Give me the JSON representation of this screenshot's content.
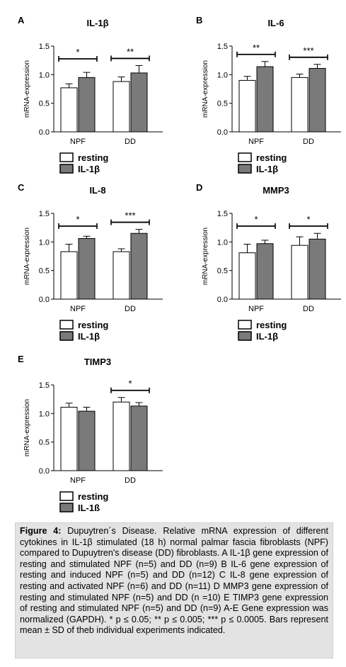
{
  "colors": {
    "resting": "#ffffff",
    "stimulated": "#7a7a7a",
    "axis": "#000000",
    "caption_bg": "#e3e3e3"
  },
  "legend": {
    "resting": "resting",
    "stimulated": "IL-1β"
  },
  "caption": {
    "label": "Figure 4:",
    "text": "Dupuytren´s Disease. Relative mRNA expression of different cytokines in IL-1β stimulated (18 h) normal palmar fascia fibroblasts (NPF) compared to Dupuytren's disease (DD) fibroblasts. A IL-1β gene expression of resting and stimulated NPF (n=5) and DD (n=9) B IL-6 gene expression of resting and induced NPF (n=5) and DD (n=12) C IL-8 gene expression of resting and activated NPF (n=6) and DD (n=11) D MMP3 gene expression of resting and stimulated NPF (n=5) and DD (n =10) E TIMP3 gene expression of resting and stimulated NPF (n=5) and DD (n=9) A-E Gene expression was normalized (GAPDH). * p ≤ 0.05; ** p ≤ 0.005; *** p ≤ 0.0005. Bars represent mean ± SD of theb individual experiments indicated."
  },
  "chart_data": [
    {
      "panel": "A",
      "title": "IL-1β",
      "type": "bar",
      "ylabel": "mRNA-expression",
      "ylim": [
        0,
        1.5
      ],
      "yticks": [
        "0.0",
        "0.5",
        "1.0",
        "1.5"
      ],
      "categories": [
        "NPF",
        "DD"
      ],
      "series": [
        {
          "name": "resting",
          "values": [
            0.77,
            0.88
          ],
          "errors": [
            0.07,
            0.08
          ]
        },
        {
          "name": "IL-1β",
          "values": [
            0.95,
            1.03
          ],
          "errors": [
            0.09,
            0.13
          ]
        }
      ],
      "significance": [
        "*",
        "**"
      ],
      "legend": [
        "resting",
        "IL-1β"
      ]
    },
    {
      "panel": "B",
      "title": "IL-6",
      "type": "bar",
      "ylabel": "mRNA-expression",
      "ylim": [
        0,
        1.5
      ],
      "yticks": [
        "0.0",
        "0.5",
        "1.0",
        "1.5"
      ],
      "categories": [
        "NPF",
        "DD"
      ],
      "series": [
        {
          "name": "resting",
          "values": [
            0.9,
            0.95
          ],
          "errors": [
            0.07,
            0.06
          ]
        },
        {
          "name": "IL-1β",
          "values": [
            1.14,
            1.11
          ],
          "errors": [
            0.09,
            0.07
          ]
        }
      ],
      "significance": [
        "**",
        "***"
      ],
      "legend": [
        "resting",
        "IL-1β"
      ]
    },
    {
      "panel": "C",
      "title": "IL-8",
      "type": "bar",
      "ylabel": "mRNA-expression",
      "ylim": [
        0,
        1.5
      ],
      "yticks": [
        "0.0",
        "0.5",
        "1.0",
        "1.5"
      ],
      "categories": [
        "NPF",
        "DD"
      ],
      "series": [
        {
          "name": "resting",
          "values": [
            0.83,
            0.83
          ],
          "errors": [
            0.13,
            0.05
          ]
        },
        {
          "name": "IL-1β",
          "values": [
            1.06,
            1.15
          ],
          "errors": [
            0.04,
            0.07
          ]
        }
      ],
      "significance": [
        "*",
        "***"
      ],
      "legend": [
        "resting",
        "IL-1β"
      ]
    },
    {
      "panel": "D",
      "title": "MMP3",
      "type": "bar",
      "ylabel": "mRNA-expression",
      "ylim": [
        0,
        1.5
      ],
      "yticks": [
        "0.0",
        "0.5",
        "1.0",
        "1.5"
      ],
      "categories": [
        "NPF",
        "DD"
      ],
      "series": [
        {
          "name": "resting",
          "values": [
            0.81,
            0.94
          ],
          "errors": [
            0.15,
            0.15
          ]
        },
        {
          "name": "IL-1β",
          "values": [
            0.97,
            1.05
          ],
          "errors": [
            0.06,
            0.1
          ]
        }
      ],
      "significance": [
        "*",
        "*"
      ],
      "legend": [
        "resting",
        "IL-1β"
      ]
    },
    {
      "panel": "E",
      "title": "TIMP3",
      "type": "bar",
      "ylabel": "mRNA-expression",
      "ylim": [
        0,
        1.5
      ],
      "yticks": [
        "0.0",
        "0.5",
        "1.0",
        "1.5"
      ],
      "categories": [
        "NPF",
        "DD"
      ],
      "series": [
        {
          "name": "resting",
          "values": [
            1.11,
            1.2
          ],
          "errors": [
            0.07,
            0.08
          ]
        },
        {
          "name": "IL-1β",
          "values": [
            1.04,
            1.13
          ],
          "errors": [
            0.07,
            0.06
          ]
        }
      ],
      "significance": [
        "",
        "*"
      ],
      "legend": [
        "resting",
        "IL-1ß"
      ]
    }
  ]
}
